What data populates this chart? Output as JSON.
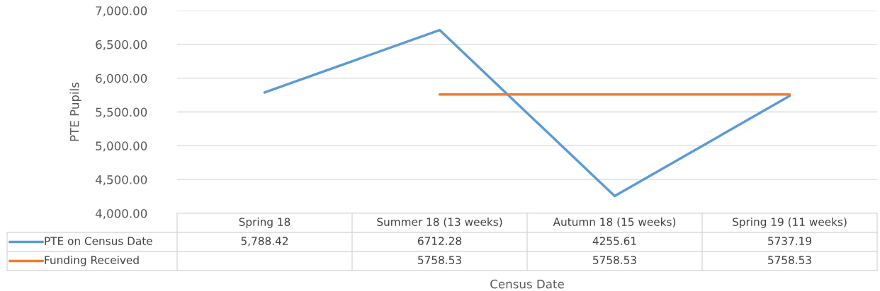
{
  "chart_data": {
    "type": "line",
    "ylabel": "PTE Pupils",
    "xlabel": "Census Date",
    "categories": [
      "Spring 18",
      "Summer 18 (13 weeks)",
      "Autumn 18 (15 weeks)",
      "Spring 19 (11 weeks)"
    ],
    "series": [
      {
        "name": "PTE on Census Date",
        "color": "#5b9bd5",
        "values": [
          5788.42,
          6712.28,
          4255.61,
          5737.19
        ],
        "value_labels": [
          "5,788.42",
          "6712.28",
          "4255.61",
          "5737.19"
        ]
      },
      {
        "name": "Funding Received",
        "color": "#ed7d31",
        "values": [
          null,
          5758.53,
          5758.53,
          5758.53
        ],
        "value_labels": [
          null,
          "5758.53",
          "5758.53",
          "5758.53"
        ]
      }
    ],
    "ylim": [
      4000,
      7000
    ],
    "yticks": [
      {
        "value": 4000,
        "label": "4,000.00"
      },
      {
        "value": 4500,
        "label": "4,500.00"
      },
      {
        "value": 5000,
        "label": "5,000.00"
      },
      {
        "value": 5500,
        "label": "5,500.00"
      },
      {
        "value": 6000,
        "label": "6,000.00"
      },
      {
        "value": 6500,
        "label": "6,500.00"
      },
      {
        "value": 7000,
        "label": "7,000.00"
      }
    ],
    "grid": "y",
    "legend": "bottom",
    "marker": "none",
    "line_style": "solid"
  }
}
